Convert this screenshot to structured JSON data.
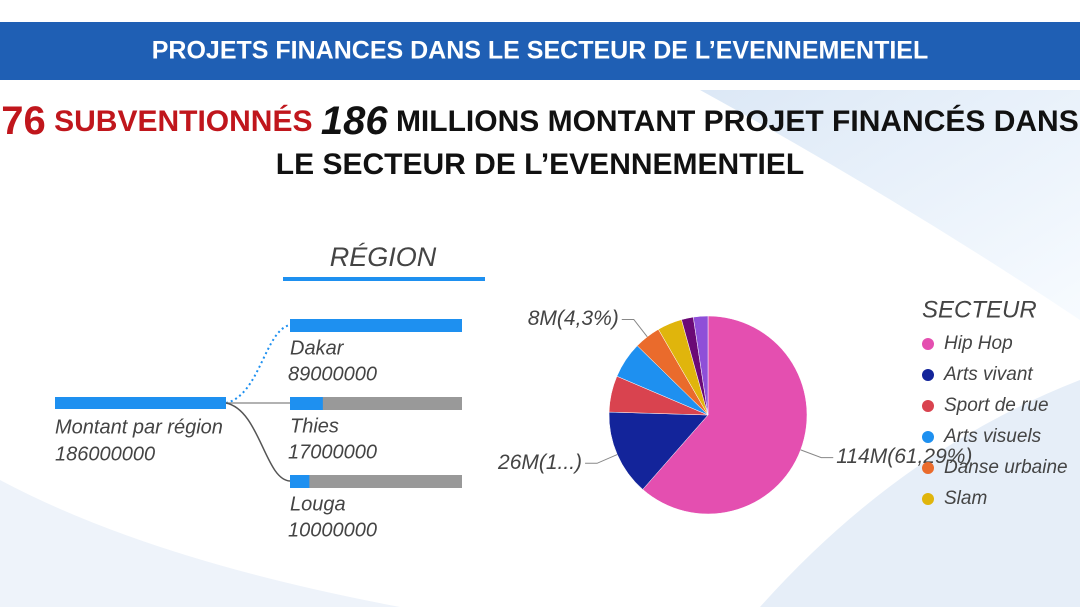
{
  "header": {
    "title": "PROJETS FINANCES DANS LE SECTEUR DE L’EVENNEMENTIEL"
  },
  "headline": {
    "count": "76",
    "count_label": "SUBVENTIONNÉS",
    "amount": "186",
    "line1": "MILLIONS MONTANT PROJET FINANCÉS DANS",
    "line2": "LE SECTEUR DE L’EVENNEMENTIEL"
  },
  "region": {
    "title": "RÉGION",
    "root": {
      "label": "Montant par région",
      "value": 186000000
    },
    "children": [
      {
        "label": "Dakar",
        "value": 89000000
      },
      {
        "label": "Thies",
        "value": 17000000
      },
      {
        "label": "Louga",
        "value": 10000000
      }
    ]
  },
  "chart_data": {
    "type": "pie",
    "legend_title": "SECTEUR",
    "categories": [
      "Hip Hop",
      "Arts vivant",
      "Sport de rue",
      "Arts visuels",
      "Danse urbaine",
      "Slam",
      null,
      null
    ],
    "values": [
      114,
      26,
      11,
      11,
      8,
      7.5,
      3.6,
      4.4
    ],
    "value_labels": [
      "114M(61,29%)",
      "26M(1...)",
      null,
      null,
      "8M(4,3%)",
      null,
      null,
      null
    ],
    "colors": [
      "#e44fb0",
      "#13249a",
      "#d9434f",
      "#1e90f0",
      "#ea6b2c",
      "#e0b50c",
      "#6b0a76",
      "#8e4fd8"
    ],
    "legend": "right"
  }
}
